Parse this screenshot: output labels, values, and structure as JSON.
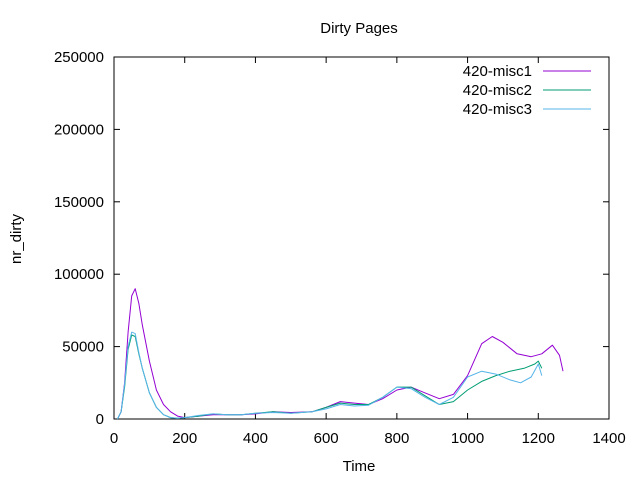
{
  "chart_data": {
    "type": "line",
    "title": "Dirty Pages",
    "xlabel": "Time",
    "ylabel": "nr_dirty",
    "xlim": [
      0,
      1400
    ],
    "ylim": [
      0,
      250000
    ],
    "xticks": [
      0,
      200,
      400,
      600,
      800,
      1000,
      1200,
      1400
    ],
    "yticks": [
      0,
      50000,
      100000,
      150000,
      200000,
      250000
    ],
    "grid": false,
    "legend_position": "top-right",
    "series": [
      {
        "name": "420-misc1",
        "color": "#9400d3",
        "points": [
          [
            10,
            0
          ],
          [
            20,
            5000
          ],
          [
            30,
            25000
          ],
          [
            40,
            60000
          ],
          [
            50,
            85000
          ],
          [
            60,
            90000
          ],
          [
            70,
            80000
          ],
          [
            80,
            65000
          ],
          [
            100,
            40000
          ],
          [
            120,
            20000
          ],
          [
            140,
            10000
          ],
          [
            160,
            5000
          ],
          [
            180,
            2000
          ],
          [
            200,
            1000
          ],
          [
            240,
            2000
          ],
          [
            280,
            3000
          ],
          [
            320,
            3000
          ],
          [
            360,
            3000
          ],
          [
            400,
            3500
          ],
          [
            450,
            5000
          ],
          [
            500,
            4500
          ],
          [
            560,
            5000
          ],
          [
            600,
            8000
          ],
          [
            640,
            12000
          ],
          [
            680,
            11000
          ],
          [
            720,
            10000
          ],
          [
            760,
            14000
          ],
          [
            800,
            20000
          ],
          [
            840,
            22000
          ],
          [
            880,
            18000
          ],
          [
            920,
            14000
          ],
          [
            960,
            17000
          ],
          [
            1000,
            30000
          ],
          [
            1040,
            52000
          ],
          [
            1070,
            57000
          ],
          [
            1100,
            53000
          ],
          [
            1140,
            45000
          ],
          [
            1180,
            43000
          ],
          [
            1210,
            45000
          ],
          [
            1240,
            51000
          ],
          [
            1260,
            44000
          ],
          [
            1270,
            33000
          ]
        ]
      },
      {
        "name": "420-misc2",
        "color": "#009e73",
        "points": [
          [
            10,
            0
          ],
          [
            20,
            5000
          ],
          [
            30,
            22000
          ],
          [
            40,
            48000
          ],
          [
            50,
            58000
          ],
          [
            60,
            57000
          ],
          [
            70,
            45000
          ],
          [
            80,
            35000
          ],
          [
            100,
            18000
          ],
          [
            120,
            8000
          ],
          [
            140,
            3000
          ],
          [
            160,
            1000
          ],
          [
            180,
            500
          ],
          [
            200,
            1000
          ],
          [
            240,
            2000
          ],
          [
            280,
            3500
          ],
          [
            320,
            3000
          ],
          [
            360,
            3000
          ],
          [
            400,
            4000
          ],
          [
            450,
            5000
          ],
          [
            500,
            4000
          ],
          [
            560,
            5000
          ],
          [
            600,
            8000
          ],
          [
            640,
            11000
          ],
          [
            680,
            10000
          ],
          [
            720,
            10000
          ],
          [
            760,
            15000
          ],
          [
            800,
            22000
          ],
          [
            840,
            22000
          ],
          [
            880,
            16000
          ],
          [
            920,
            10000
          ],
          [
            960,
            12000
          ],
          [
            1000,
            20000
          ],
          [
            1040,
            26000
          ],
          [
            1080,
            30000
          ],
          [
            1120,
            33000
          ],
          [
            1160,
            35000
          ],
          [
            1190,
            38000
          ],
          [
            1200,
            40000
          ],
          [
            1210,
            35000
          ]
        ]
      },
      {
        "name": "420-misc3",
        "color": "#56b4e9",
        "points": [
          [
            10,
            0
          ],
          [
            20,
            5000
          ],
          [
            30,
            24000
          ],
          [
            40,
            50000
          ],
          [
            50,
            60000
          ],
          [
            60,
            59000
          ],
          [
            70,
            46000
          ],
          [
            80,
            35000
          ],
          [
            100,
            18000
          ],
          [
            120,
            8000
          ],
          [
            140,
            3000
          ],
          [
            160,
            1000
          ],
          [
            180,
            500
          ],
          [
            200,
            1000
          ],
          [
            240,
            2500
          ],
          [
            280,
            3500
          ],
          [
            320,
            3000
          ],
          [
            360,
            3000
          ],
          [
            400,
            4000
          ],
          [
            450,
            4500
          ],
          [
            500,
            4000
          ],
          [
            560,
            5000
          ],
          [
            600,
            7000
          ],
          [
            640,
            10000
          ],
          [
            680,
            9000
          ],
          [
            720,
            9500
          ],
          [
            760,
            15000
          ],
          [
            800,
            22000
          ],
          [
            840,
            21000
          ],
          [
            880,
            15000
          ],
          [
            920,
            10000
          ],
          [
            960,
            15000
          ],
          [
            1000,
            29000
          ],
          [
            1040,
            33000
          ],
          [
            1080,
            31000
          ],
          [
            1120,
            27000
          ],
          [
            1150,
            25000
          ],
          [
            1180,
            29000
          ],
          [
            1200,
            38000
          ],
          [
            1210,
            30000
          ]
        ]
      }
    ]
  }
}
